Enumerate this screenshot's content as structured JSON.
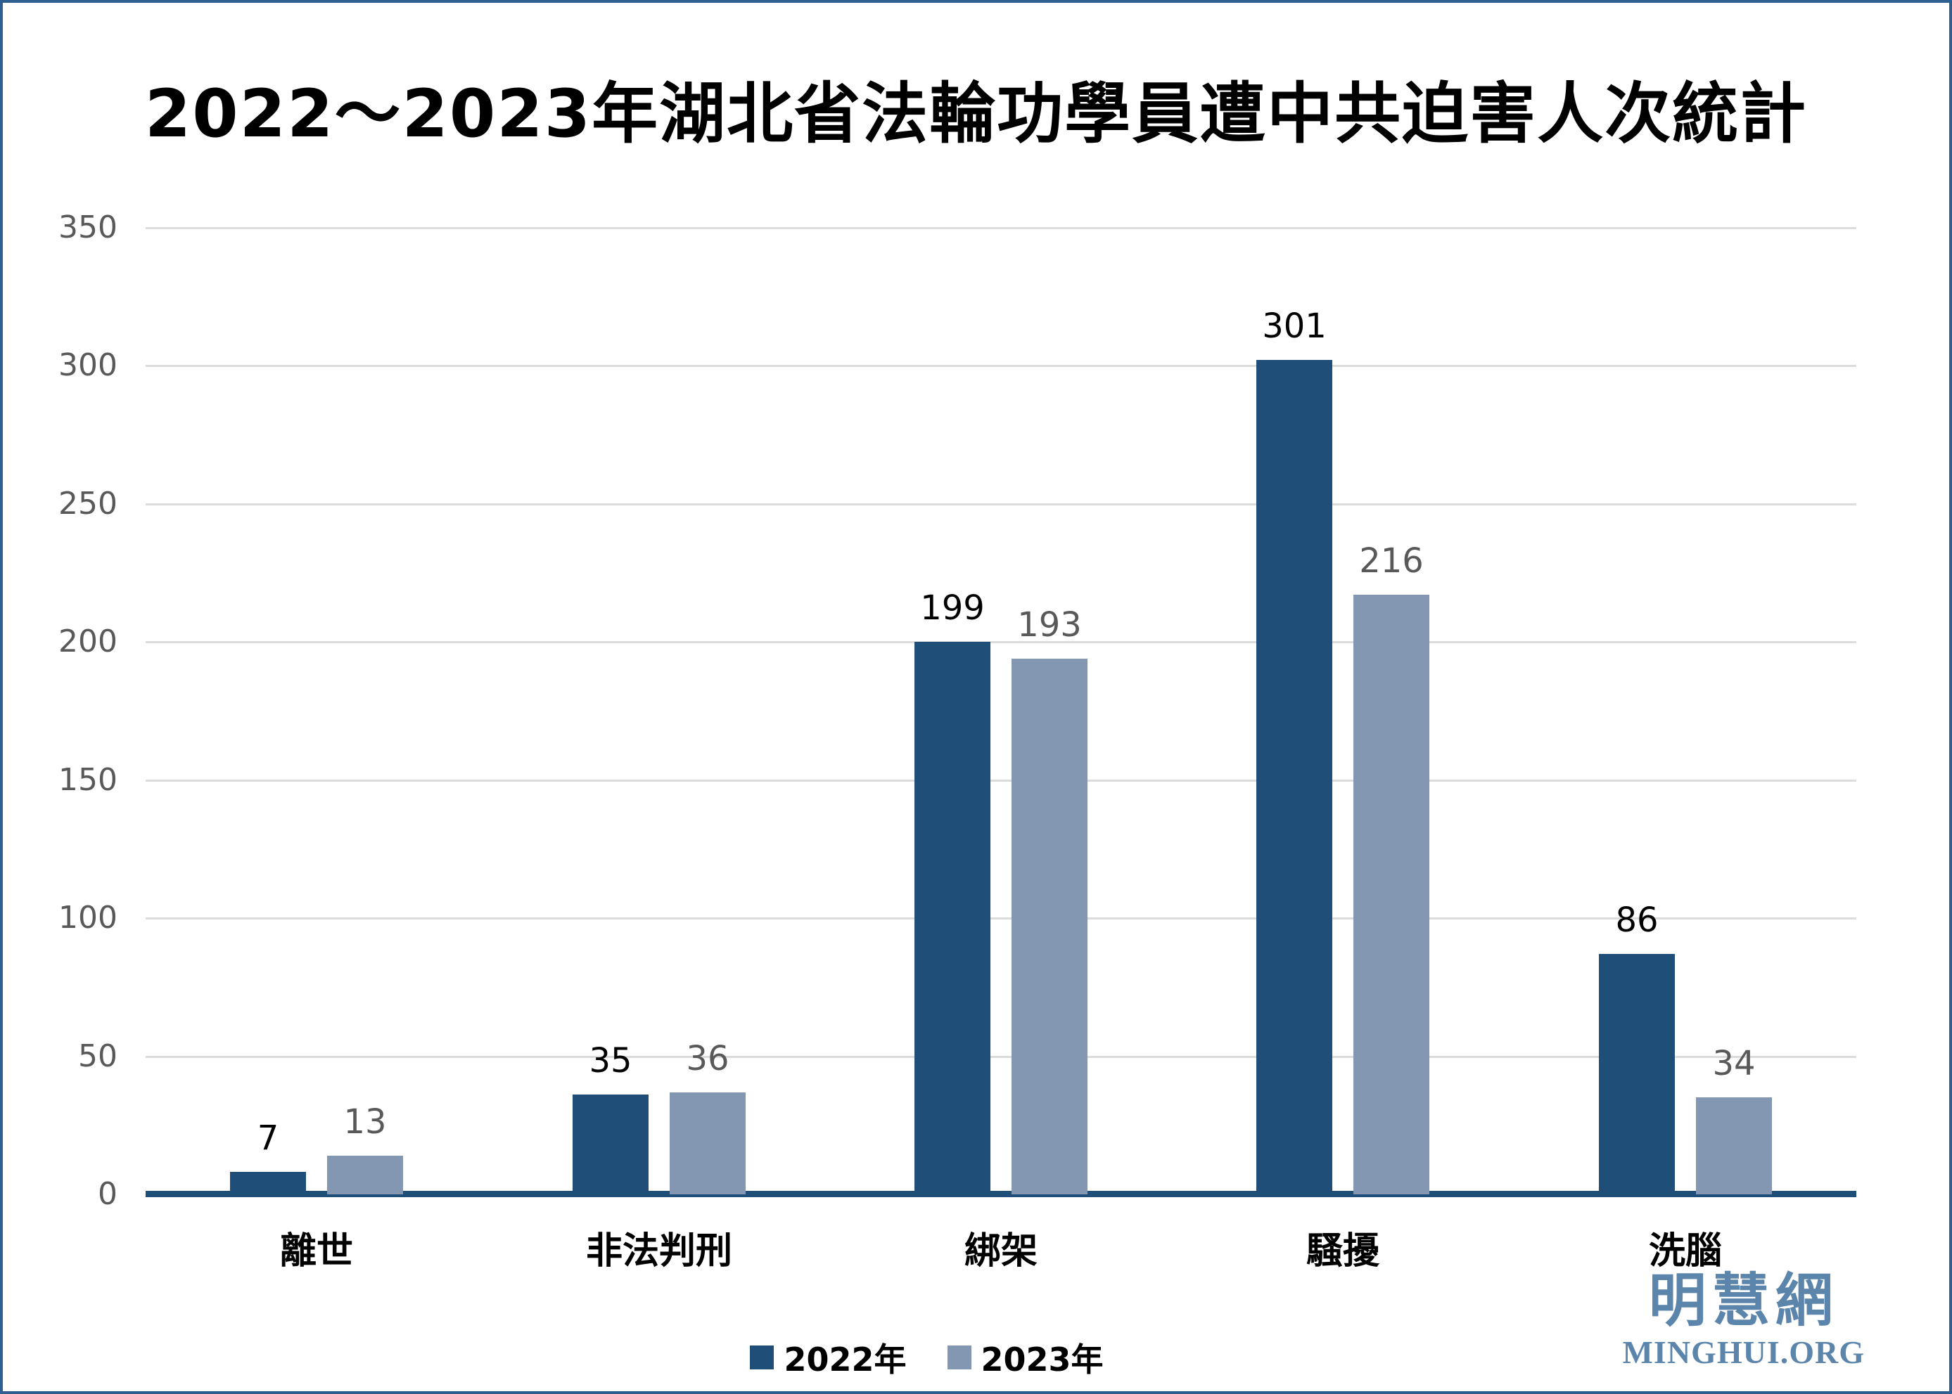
{
  "chart_data": {
    "type": "bar",
    "title": "2022～2023年湖北省法輪功學員遭中共迫害人次統計",
    "categories": [
      "離世",
      "非法判刑",
      "綁架",
      "騷擾",
      "洗腦"
    ],
    "series": [
      {
        "name": "2022年",
        "color": "#1F4E79",
        "label_color": "#000000",
        "values": [
          7,
          35,
          199,
          301,
          86
        ]
      },
      {
        "name": "2023年",
        "color": "#8497B2",
        "label_color": "#595959",
        "values": [
          13,
          36,
          193,
          216,
          34
        ]
      }
    ],
    "xlabel": "",
    "ylabel": "",
    "ylim": [
      0,
      350
    ],
    "yticks": [
      0,
      50,
      100,
      150,
      200,
      250,
      300,
      350
    ],
    "grid": "horizontal",
    "legend_position": "bottom-center"
  },
  "colors": {
    "grid_line": "#DCDCDC",
    "axis_line": "#1F4E79",
    "y_tick_label": "#595959",
    "frame_border": "#2E5F90",
    "logo_blue": "#5C85AC"
  },
  "logo": {
    "chinese": "明慧網",
    "latin": "MINGHUI.ORG"
  }
}
